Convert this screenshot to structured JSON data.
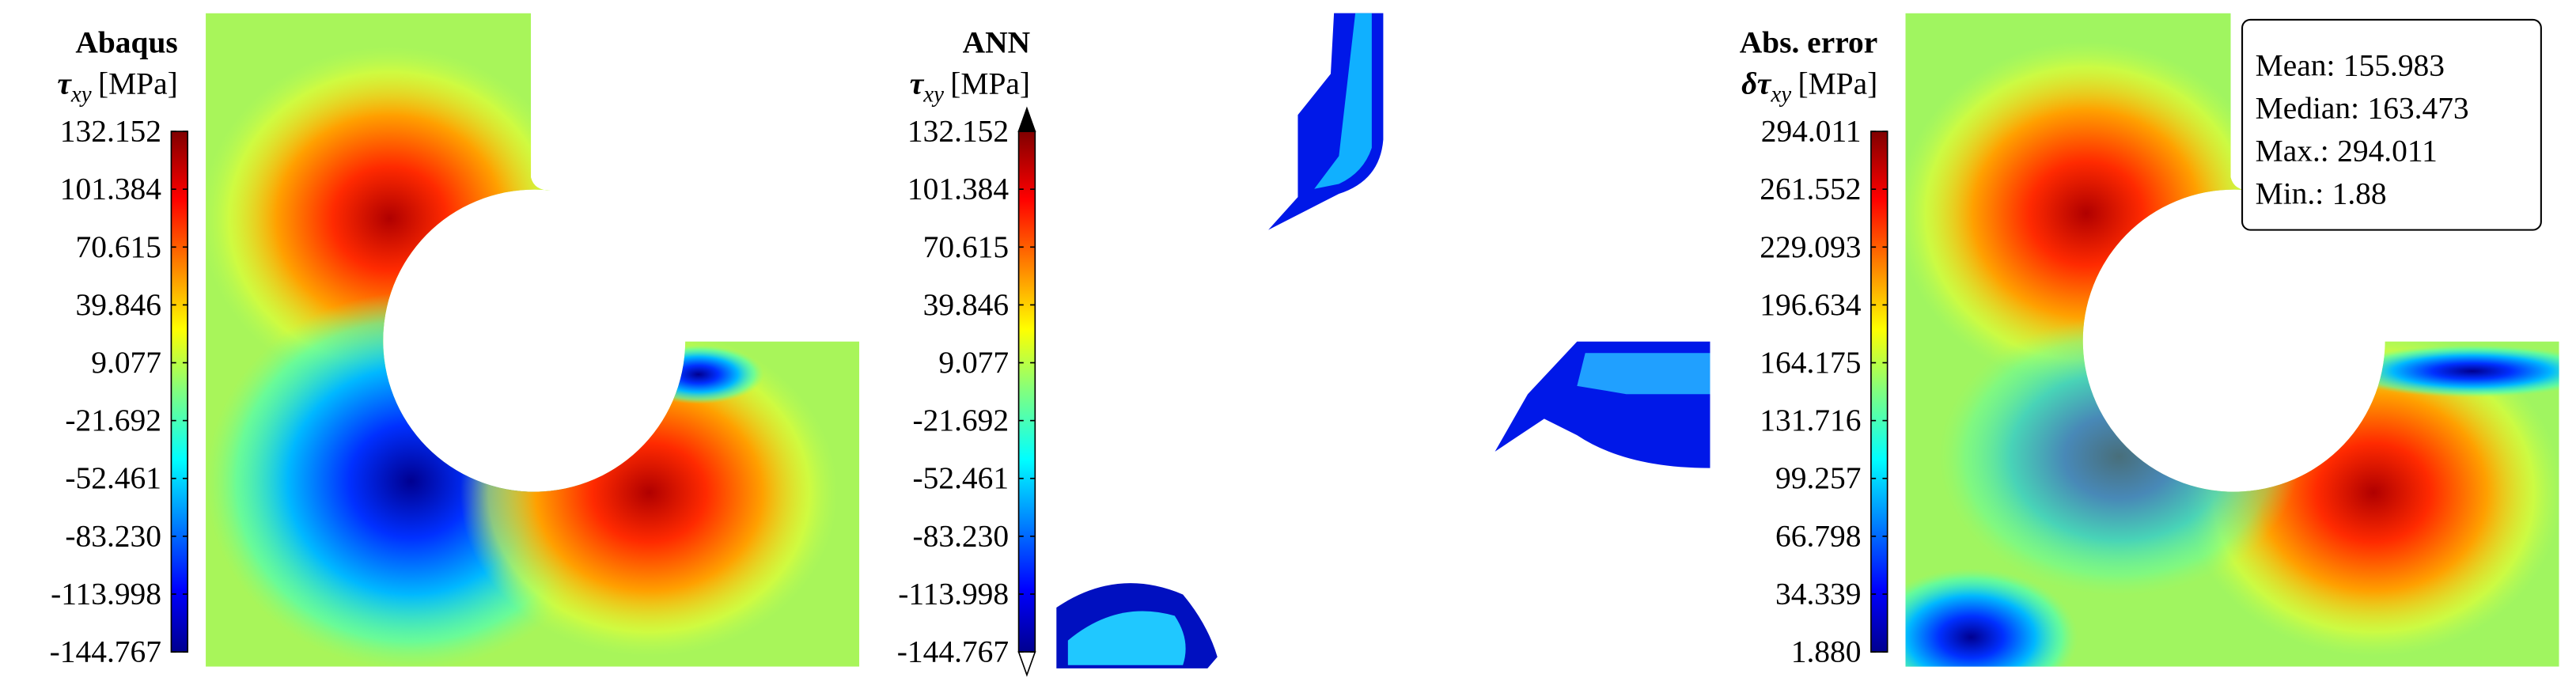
{
  "chart_data": [
    {
      "type": "contour",
      "title": "Abaqus",
      "label_symbol": "τ",
      "label_subscript": "xy",
      "label_unit": "[MPa]",
      "clim": [
        -144.767,
        132.152
      ],
      "colormap": "jet",
      "extend": "neither",
      "ticks": [
        132.152,
        101.384,
        70.615,
        39.846,
        9.077,
        -21.692,
        -52.461,
        {
          "value": -83.23,
          "label": "-83.230"
        },
        -113.998,
        -144.767
      ]
    },
    {
      "type": "contour",
      "title": "ANN",
      "label_symbol": "τ",
      "label_subscript": "xy",
      "label_unit": "[MPa]",
      "clim": [
        -144.767,
        132.152
      ],
      "colormap": "jet",
      "extend": "both",
      "ticks": [
        132.152,
        101.384,
        70.615,
        39.846,
        9.077,
        -21.692,
        -52.461,
        {
          "value": -83.23,
          "label": "-83.230"
        },
        -113.998,
        -144.767
      ]
    },
    {
      "type": "contour",
      "title": "Abs. error",
      "label_symbol": "δτ",
      "label_subscript": "xy",
      "label_unit": "[MPa]",
      "clim": [
        1.88,
        294.011
      ],
      "colormap": "jet",
      "extend": "neither",
      "ticks": [
        294.011,
        261.552,
        229.093,
        196.634,
        164.175,
        131.716,
        99.257,
        66.798,
        34.339,
        {
          "value": 1.88,
          "label": "1.880"
        }
      ],
      "stats": [
        {
          "label": "Mean:",
          "value": 155.983
        },
        {
          "label": "Median:",
          "value": 163.473
        },
        {
          "label": "Max.:",
          "value": 294.011
        },
        {
          "label": "Min.:",
          "value": 1.88
        }
      ]
    }
  ]
}
